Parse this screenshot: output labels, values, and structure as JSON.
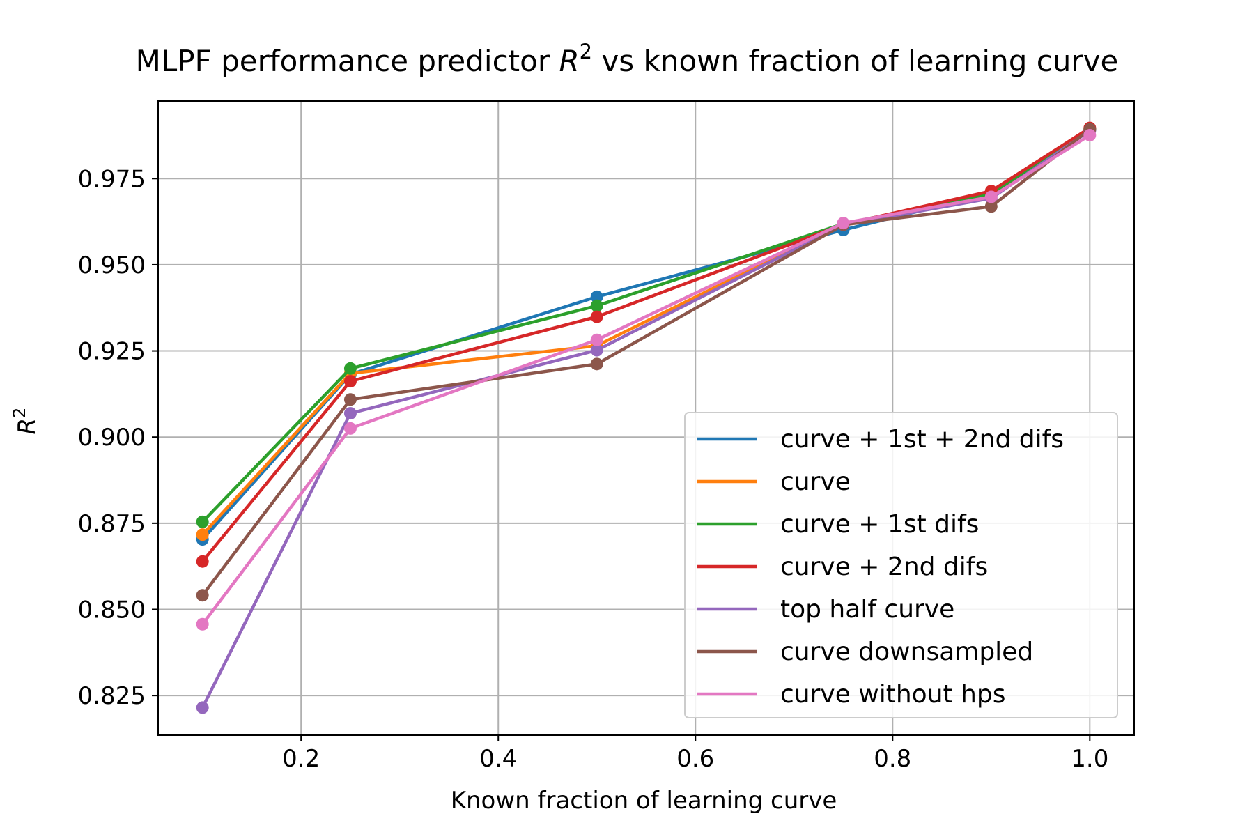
{
  "chart_data": {
    "type": "line",
    "title_main": "MLPF performance predictor ",
    "title_var": "R",
    "title_sup": "2",
    "title_rest": " vs known fraction of learning curve",
    "xlabel": "Known fraction of learning curve",
    "ylabel_var": "R",
    "ylabel_sup": "2",
    "xlim": [
      0.055,
      1.045
    ],
    "ylim": [
      0.8135,
      0.9975
    ],
    "xticks": [
      0.2,
      0.4,
      0.6,
      0.8,
      1.0
    ],
    "xtick_labels": [
      "0.2",
      "0.4",
      "0.6",
      "0.8",
      "1.0"
    ],
    "yticks": [
      0.825,
      0.85,
      0.875,
      0.9,
      0.925,
      0.95,
      0.975
    ],
    "ytick_labels": [
      "0.825",
      "0.850",
      "0.875",
      "0.900",
      "0.925",
      "0.950",
      "0.975"
    ],
    "grid": true,
    "legend_position": "lower right",
    "x": [
      0.1,
      0.25,
      0.5,
      0.75,
      0.9,
      1.0
    ],
    "series": [
      {
        "name": "curve + 1st + 2nd difs",
        "color": "#1f77b4",
        "values": [
          0.8703,
          0.9182,
          0.9407,
          0.9601,
          0.9708,
          0.9892
        ]
      },
      {
        "name": "curve",
        "color": "#ff7f0e",
        "values": [
          0.8717,
          0.9185,
          0.9265,
          0.9618,
          0.9701,
          0.9894
        ]
      },
      {
        "name": "curve + 1st difs",
        "color": "#2ca02c",
        "values": [
          0.8754,
          0.9199,
          0.9381,
          0.9619,
          0.9706,
          0.9893
        ]
      },
      {
        "name": "curve + 2nd difs",
        "color": "#d62728",
        "values": [
          0.8639,
          0.9162,
          0.9349,
          0.9617,
          0.9714,
          0.9897
        ]
      },
      {
        "name": "top half curve",
        "color": "#9467bd",
        "values": [
          0.8215,
          0.9069,
          0.9252,
          0.9616,
          0.9693,
          0.9889
        ]
      },
      {
        "name": "curve downsampled",
        "color": "#8c564b",
        "values": [
          0.8541,
          0.9109,
          0.9212,
          0.9616,
          0.9669,
          0.9893
        ]
      },
      {
        "name": "curve without hps",
        "color": "#e377c2",
        "values": [
          0.8457,
          0.9025,
          0.9282,
          0.9621,
          0.9697,
          0.9876
        ]
      }
    ]
  }
}
